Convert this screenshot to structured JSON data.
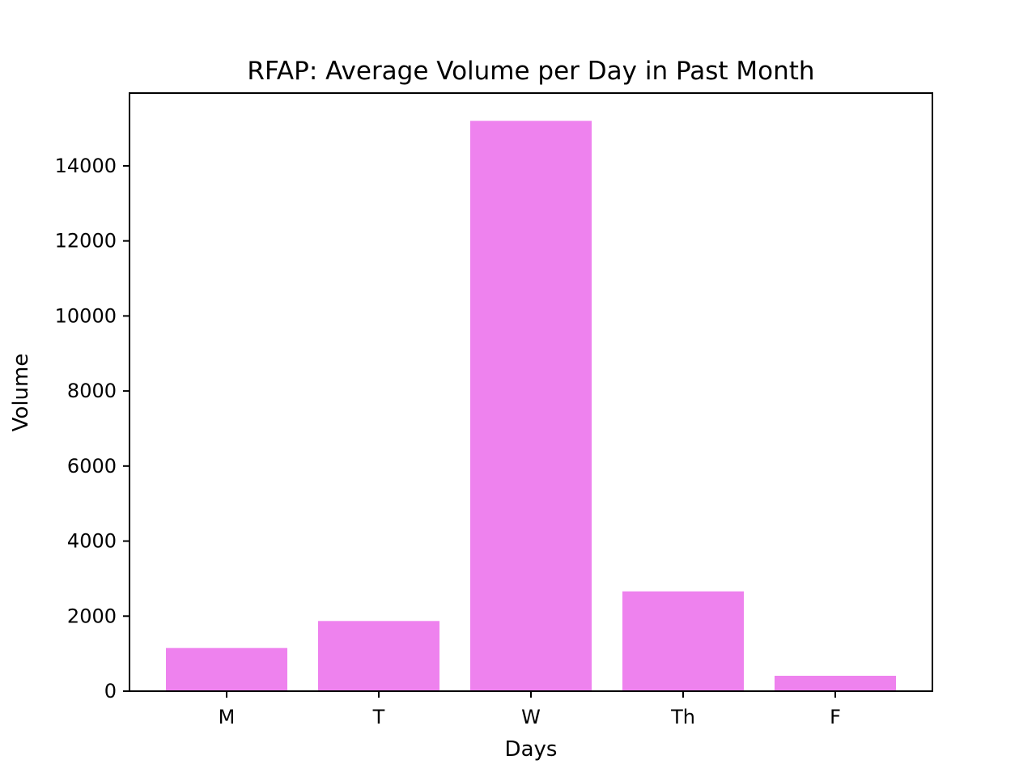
{
  "chart_data": {
    "type": "bar",
    "title": "RFAP: Average Volume per Day in Past Month",
    "xlabel": "Days",
    "ylabel": "Volume",
    "categories": [
      "M",
      "T",
      "W",
      "Th",
      "F"
    ],
    "values": [
      1150,
      1870,
      15200,
      2660,
      410
    ],
    "ylim": [
      0,
      15940
    ],
    "yticks": [
      0,
      2000,
      4000,
      6000,
      8000,
      10000,
      12000,
      14000
    ],
    "bar_color": "#ee82ee",
    "grid": false,
    "legend": "none"
  }
}
